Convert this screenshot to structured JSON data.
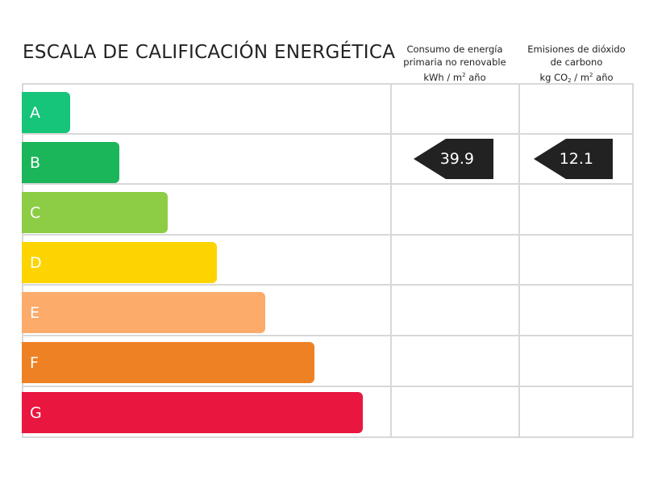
{
  "title": "ESCALA DE CALIFICACIÓN ENERGÉTICA",
  "columns": {
    "primary_energy": {
      "line1": "Consumo de energía",
      "line2": "primaria no renovable",
      "unit_a": "kWh / m",
      "unit_sup": "2",
      "unit_b": " año"
    },
    "co2": {
      "line1": "Emisiones de dióxido",
      "line2": "de carbono",
      "unit_a": "kg CO",
      "unit_sub": "2",
      "unit_mid": " / m",
      "unit_sup": "2",
      "unit_b": " año"
    }
  },
  "classes": [
    {
      "letter": "A",
      "color": "#16c47a"
    },
    {
      "letter": "B",
      "color": "#1bb55a"
    },
    {
      "letter": "C",
      "color": "#8dcd46"
    },
    {
      "letter": "D",
      "color": "#fdd400"
    },
    {
      "letter": "E",
      "color": "#fcab6b"
    },
    {
      "letter": "F",
      "color": "#ee8124"
    },
    {
      "letter": "G",
      "color": "#e9163f"
    }
  ],
  "rating": {
    "class": "B",
    "primary_energy_value": "39.9",
    "co2_value": "12.1",
    "arrow_color": "#222222"
  }
}
